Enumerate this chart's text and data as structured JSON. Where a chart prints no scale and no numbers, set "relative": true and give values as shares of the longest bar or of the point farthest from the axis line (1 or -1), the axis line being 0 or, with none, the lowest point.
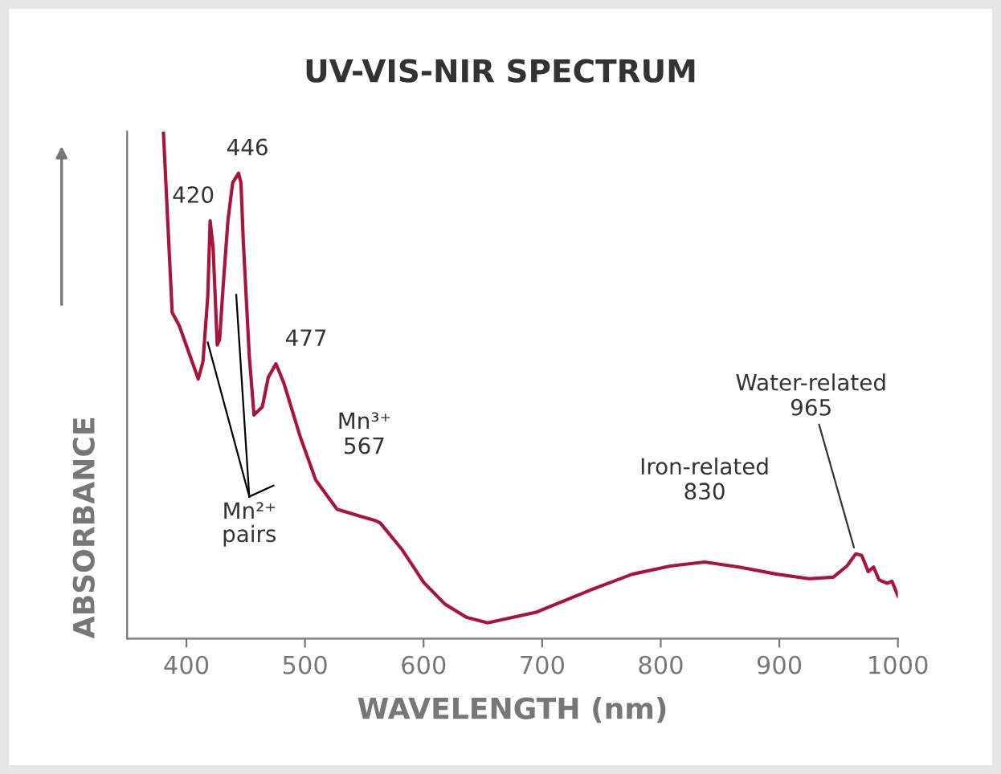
{
  "chart_data": {
    "type": "line",
    "title": "UV-VIS-NIR SPECTRUM",
    "xlabel": "WAVELENGTH (nm)",
    "ylabel": "ABSORBANCE",
    "relative": true,
    "xlim": [
      350,
      1000
    ],
    "xticks": [
      400,
      500,
      600,
      700,
      800,
      900,
      1000
    ],
    "grid": false,
    "tick_labels": "x",
    "series": [
      {
        "color": "#a8143c",
        "x": [
          380.6,
          384,
          388,
          394,
          403,
          410,
          414,
          418,
          420,
          422.5,
          426,
          428,
          431,
          435,
          439,
          444,
          446,
          448,
          453,
          457,
          464,
          469,
          475.5,
          482,
          496,
          509,
          527,
          545.5,
          559,
          563.5,
          582,
          600,
          618,
          636,
          654,
          695,
          740,
          776,
          808,
          837,
          866,
          898,
          925,
          945.5,
          957,
          964.5,
          969.5,
          975,
          979.5,
          984,
          991,
          995,
          1000
        ],
        "values": [
          1.0,
          0.835,
          0.643,
          0.617,
          0.558,
          0.512,
          0.547,
          0.675,
          0.824,
          0.771,
          0.579,
          0.59,
          0.696,
          0.824,
          0.899,
          0.918,
          0.899,
          0.782,
          0.558,
          0.441,
          0.457,
          0.515,
          0.542,
          0.505,
          0.398,
          0.313,
          0.255,
          0.242,
          0.233,
          0.228,
          0.175,
          0.111,
          0.068,
          0.042,
          0.031,
          0.052,
          0.095,
          0.127,
          0.143,
          0.151,
          0.141,
          0.127,
          0.118,
          0.121,
          0.143,
          0.167,
          0.164,
          0.132,
          0.141,
          0.116,
          0.109,
          0.113,
          0.084
        ]
      }
    ],
    "annotations": [
      {
        "text": "420",
        "x": 420,
        "y": 0.824
      },
      {
        "text": "446",
        "x": 444,
        "y": 0.918
      },
      {
        "text": "477",
        "x": 475.5,
        "y": 0.542
      },
      "Mn²⁺\npairs",
      {
        "text": "Mn³⁺\n567",
        "x": 550,
        "y": 0.241
      },
      {
        "text": "Iron-related\n830",
        "x": 837,
        "y": 0.151
      },
      {
        "text": "Water-related\n965",
        "x": 964.5,
        "y": 0.167
      }
    ]
  }
}
